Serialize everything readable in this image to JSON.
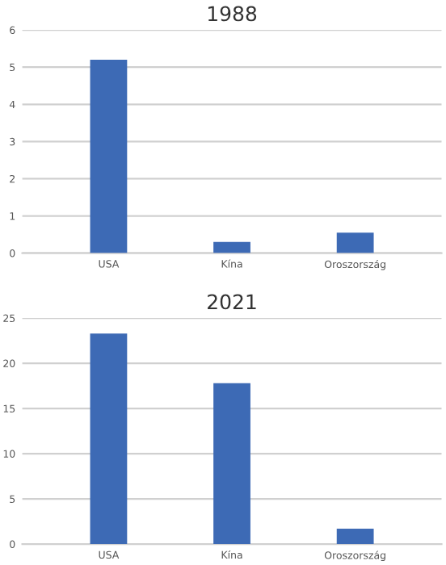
{
  "chart_data": [
    {
      "type": "bar",
      "title": "1988",
      "categories": [
        "USA",
        "Kína",
        "Oroszország"
      ],
      "values": [
        5.2,
        0.3,
        0.55
      ],
      "color": "#3d6ab5",
      "ylim": [
        0,
        6
      ],
      "yticks": [
        0,
        1,
        2,
        3,
        4,
        5,
        6
      ],
      "grid": "y"
    },
    {
      "type": "bar",
      "title": "2021",
      "categories": [
        "USA",
        "Kína",
        "Oroszország"
      ],
      "values": [
        23.3,
        17.8,
        1.7
      ],
      "color": "#3d6ab5",
      "ylim": [
        0,
        25
      ],
      "yticks": [
        0,
        5,
        10,
        15,
        20,
        25
      ],
      "grid": "y"
    }
  ]
}
